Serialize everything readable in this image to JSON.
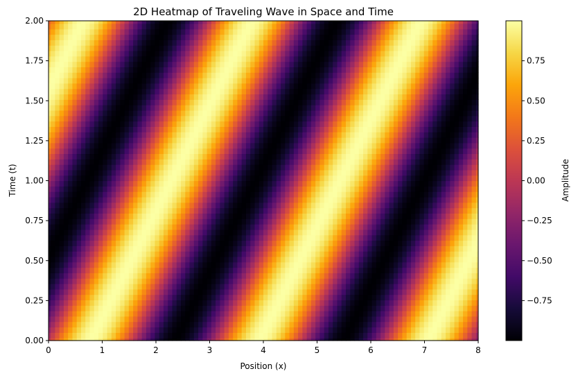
{
  "chart_data": {
    "type": "heatmap",
    "title": "2D Heatmap of Traveling Wave in Space and Time",
    "xlabel": "Position (x)",
    "ylabel": "Time (t)",
    "colorbar_label": "Amplitude",
    "colormap": "inferno",
    "function": "sin(2x - 3t)",
    "xlim": [
      0,
      8
    ],
    "ylim": [
      0,
      2
    ],
    "grid_resolution": {
      "nx": 100,
      "nt": 60
    },
    "x_ticks": [
      0,
      1,
      2,
      3,
      4,
      5,
      6,
      7,
      8
    ],
    "x_tick_labels": [
      "0",
      "1",
      "2",
      "3",
      "4",
      "5",
      "6",
      "7",
      "8"
    ],
    "y_ticks": [
      0,
      0.25,
      0.5,
      0.75,
      1.0,
      1.25,
      1.5,
      1.75,
      2.0
    ],
    "y_tick_labels": [
      "0.00",
      "0.25",
      "0.50",
      "0.75",
      "1.00",
      "1.25",
      "1.50",
      "1.75",
      "2.00"
    ],
    "colorbar_range": [
      -1,
      1
    ],
    "colorbar_ticks": [
      -0.75,
      -0.5,
      -0.25,
      0,
      0.25,
      0.5,
      0.75
    ],
    "colorbar_tick_labels": [
      "−0.75",
      "−0.50",
      "−0.25",
      "0.00",
      "0.25",
      "0.50",
      "0.75"
    ],
    "grid": false
  }
}
